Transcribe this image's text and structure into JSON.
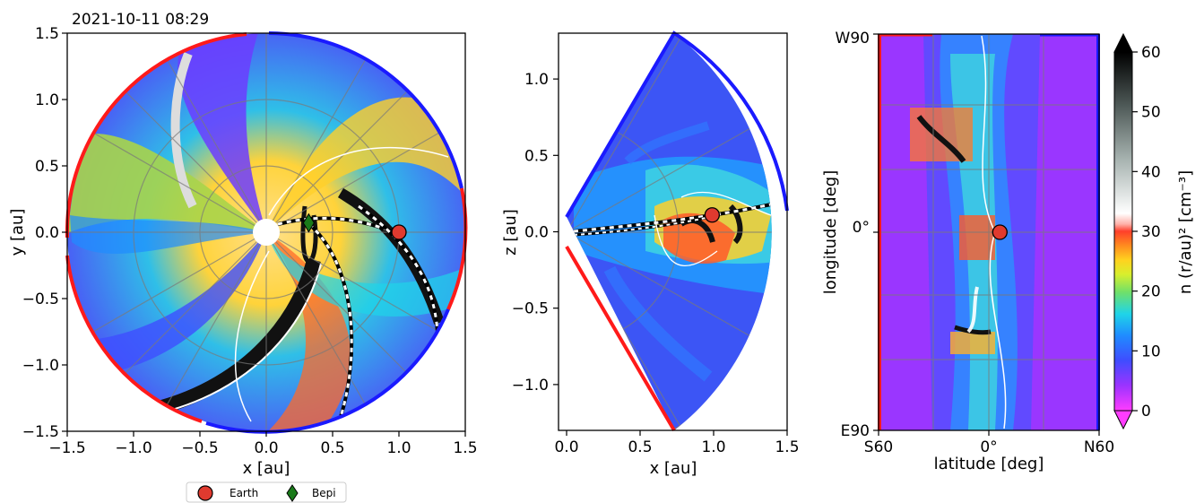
{
  "chart_data": [
    {
      "type": "heatmap",
      "panel": "equatorial-plane",
      "title": "2021-10-11 08:29",
      "xlabel": "x [au]",
      "ylabel": "y [au]",
      "xlim": [
        -1.5,
        1.5
      ],
      "ylim": [
        -1.5,
        1.5
      ],
      "xticks": [
        "−1.5",
        "−1.0",
        "−0.5",
        "0.0",
        "0.5",
        "1.0",
        "1.5"
      ],
      "yticks": [
        "−1.5",
        "−1.0",
        "−0.5",
        "0.0",
        "0.5",
        "1.0",
        "1.5"
      ],
      "markers": [
        {
          "name": "Earth",
          "x": 1.0,
          "y": 0.0
        },
        {
          "name": "Bepi",
          "x": 0.32,
          "y": 0.07
        }
      ]
    },
    {
      "type": "heatmap",
      "panel": "meridional-plane",
      "xlabel": "x [au]",
      "ylabel": "z [au]",
      "xlim": [
        0.0,
        1.5
      ],
      "ylim": [
        -1.3,
        1.3
      ],
      "xticks": [
        "0.0",
        "0.5",
        "1.0",
        "1.5"
      ],
      "yticks": [
        "−1.0",
        "−0.5",
        "0.0",
        "0.5",
        "1.0"
      ],
      "markers": [
        {
          "name": "Earth",
          "x": 0.99,
          "y": 0.11
        }
      ]
    },
    {
      "type": "heatmap",
      "panel": "latitude-longitude",
      "xlabel": "latitude [deg]",
      "ylabel": "longitude [deg]",
      "xticks": [
        "S60",
        "0°",
        "N60"
      ],
      "yticks": [
        "W90",
        "0°",
        "E90"
      ],
      "colorbar": {
        "label": "n (r/au)²  [cm⁻³]",
        "range": [
          0,
          60
        ],
        "ticks": [
          "0",
          "10",
          "20",
          "30",
          "40",
          "50",
          "60"
        ]
      },
      "markers": [
        {
          "name": "Earth",
          "x": 6,
          "y": 0
        }
      ]
    }
  ],
  "legend": {
    "items": [
      {
        "label": "Earth",
        "color": "#e03a2f"
      },
      {
        "label": "Bepi",
        "color": "#1a7a1a"
      }
    ]
  }
}
